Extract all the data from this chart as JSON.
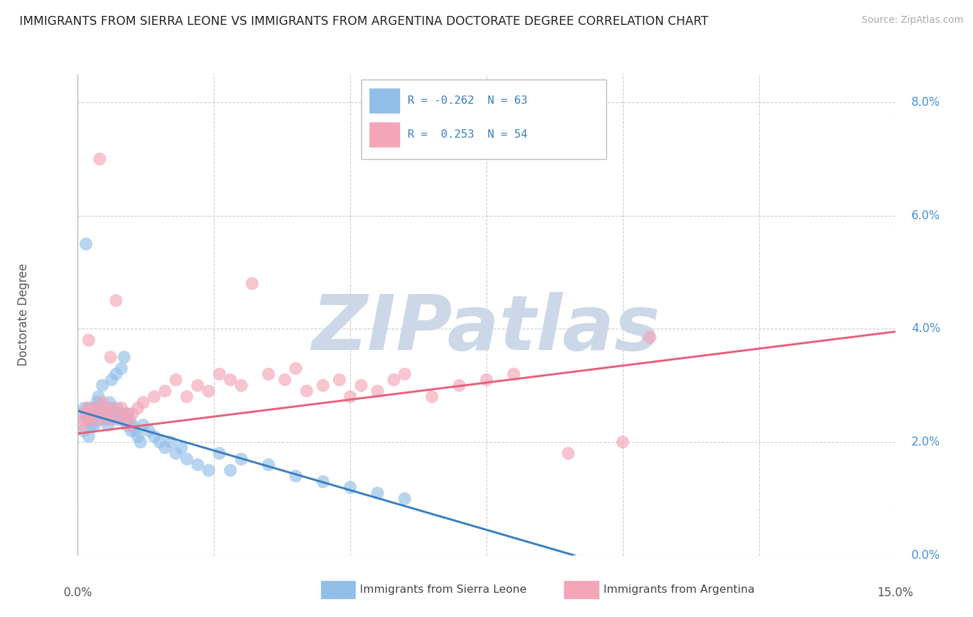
{
  "title": "IMMIGRANTS FROM SIERRA LEONE VS IMMIGRANTS FROM ARGENTINA DOCTORATE DEGREE CORRELATION CHART",
  "source": "Source: ZipAtlas.com",
  "ylabel": "Doctorate Degree",
  "color_sierra": "#92bfe8",
  "color_argentina": "#f4a5b8",
  "color_sierra_line": "#3a7fc1",
  "color_argentina_line": "#e8607a",
  "watermark": "ZIPatlas",
  "watermark_color": "#ccd8e8",
  "legend_text1": "R = -0.262  N = 63",
  "legend_text2": "R =  0.253  N = 54",
  "sierra_x": [
    0.08,
    0.12,
    0.15,
    0.18,
    0.2,
    0.22,
    0.25,
    0.28,
    0.3,
    0.32,
    0.35,
    0.38,
    0.4,
    0.42,
    0.45,
    0.48,
    0.5,
    0.52,
    0.55,
    0.58,
    0.6,
    0.62,
    0.65,
    0.68,
    0.7,
    0.72,
    0.75,
    0.78,
    0.8,
    0.82,
    0.85,
    0.88,
    0.9,
    0.92,
    0.95,
    0.98,
    1.0,
    1.05,
    1.1,
    1.15,
    1.2,
    1.3,
    1.4,
    1.5,
    1.6,
    1.7,
    1.8,
    1.9,
    2.0,
    2.2,
    2.4,
    2.6,
    2.8,
    3.0,
    3.5,
    4.0,
    4.5,
    5.0,
    5.5,
    6.0,
    0.1,
    0.2,
    0.3
  ],
  "sierra_y": [
    2.5,
    2.6,
    5.5,
    2.4,
    2.5,
    2.6,
    2.3,
    2.4,
    2.5,
    2.6,
    2.7,
    2.8,
    2.5,
    2.4,
    3.0,
    2.6,
    2.5,
    2.4,
    2.3,
    2.7,
    2.6,
    3.1,
    2.5,
    2.4,
    3.2,
    2.6,
    2.5,
    2.4,
    3.3,
    2.5,
    3.5,
    2.4,
    2.3,
    2.5,
    2.4,
    2.2,
    2.3,
    2.2,
    2.1,
    2.0,
    2.3,
    2.2,
    2.1,
    2.0,
    1.9,
    2.0,
    1.8,
    1.9,
    1.7,
    1.6,
    1.5,
    1.8,
    1.5,
    1.7,
    1.6,
    1.4,
    1.3,
    1.2,
    1.1,
    1.0,
    2.2,
    2.1,
    2.3
  ],
  "argentina_x": [
    0.08,
    0.12,
    0.15,
    0.18,
    0.2,
    0.25,
    0.3,
    0.35,
    0.4,
    0.45,
    0.5,
    0.55,
    0.6,
    0.65,
    0.7,
    0.75,
    0.8,
    0.85,
    0.9,
    0.95,
    1.0,
    1.1,
    1.2,
    1.4,
    1.6,
    1.8,
    2.0,
    2.2,
    2.4,
    2.6,
    2.8,
    3.0,
    3.2,
    3.5,
    3.8,
    4.0,
    4.2,
    4.5,
    4.8,
    5.0,
    5.2,
    5.5,
    5.8,
    6.0,
    6.5,
    7.0,
    7.5,
    8.0,
    9.0,
    10.0,
    10.5,
    0.2,
    0.4,
    0.6
  ],
  "argentina_y": [
    2.3,
    2.4,
    2.5,
    2.6,
    2.5,
    2.4,
    2.6,
    2.5,
    2.4,
    2.7,
    2.6,
    2.5,
    2.4,
    2.6,
    4.5,
    2.5,
    2.6,
    2.4,
    2.5,
    2.3,
    2.5,
    2.6,
    2.7,
    2.8,
    2.9,
    3.1,
    2.8,
    3.0,
    2.9,
    3.2,
    3.1,
    3.0,
    4.8,
    3.2,
    3.1,
    3.3,
    2.9,
    3.0,
    3.1,
    2.8,
    3.0,
    2.9,
    3.1,
    3.2,
    2.8,
    3.0,
    3.1,
    3.2,
    1.8,
    2.0,
    3.85,
    3.8,
    7.0,
    3.5
  ],
  "xlim": [
    0.0,
    15.0
  ],
  "ylim": [
    0.0,
    8.5
  ],
  "ytick_vals": [
    0.0,
    2.0,
    4.0,
    6.0,
    8.0
  ],
  "ytick_labels": [
    "0.0%",
    "2.0%",
    "4.0%",
    "6.0%",
    "8.0%"
  ],
  "xtick_left": "0.0%",
  "xtick_right": "15.0%",
  "sierra_slope": -0.28,
  "sierra_intercept": 2.55,
  "argentina_slope": 0.12,
  "argentina_intercept": 2.15
}
